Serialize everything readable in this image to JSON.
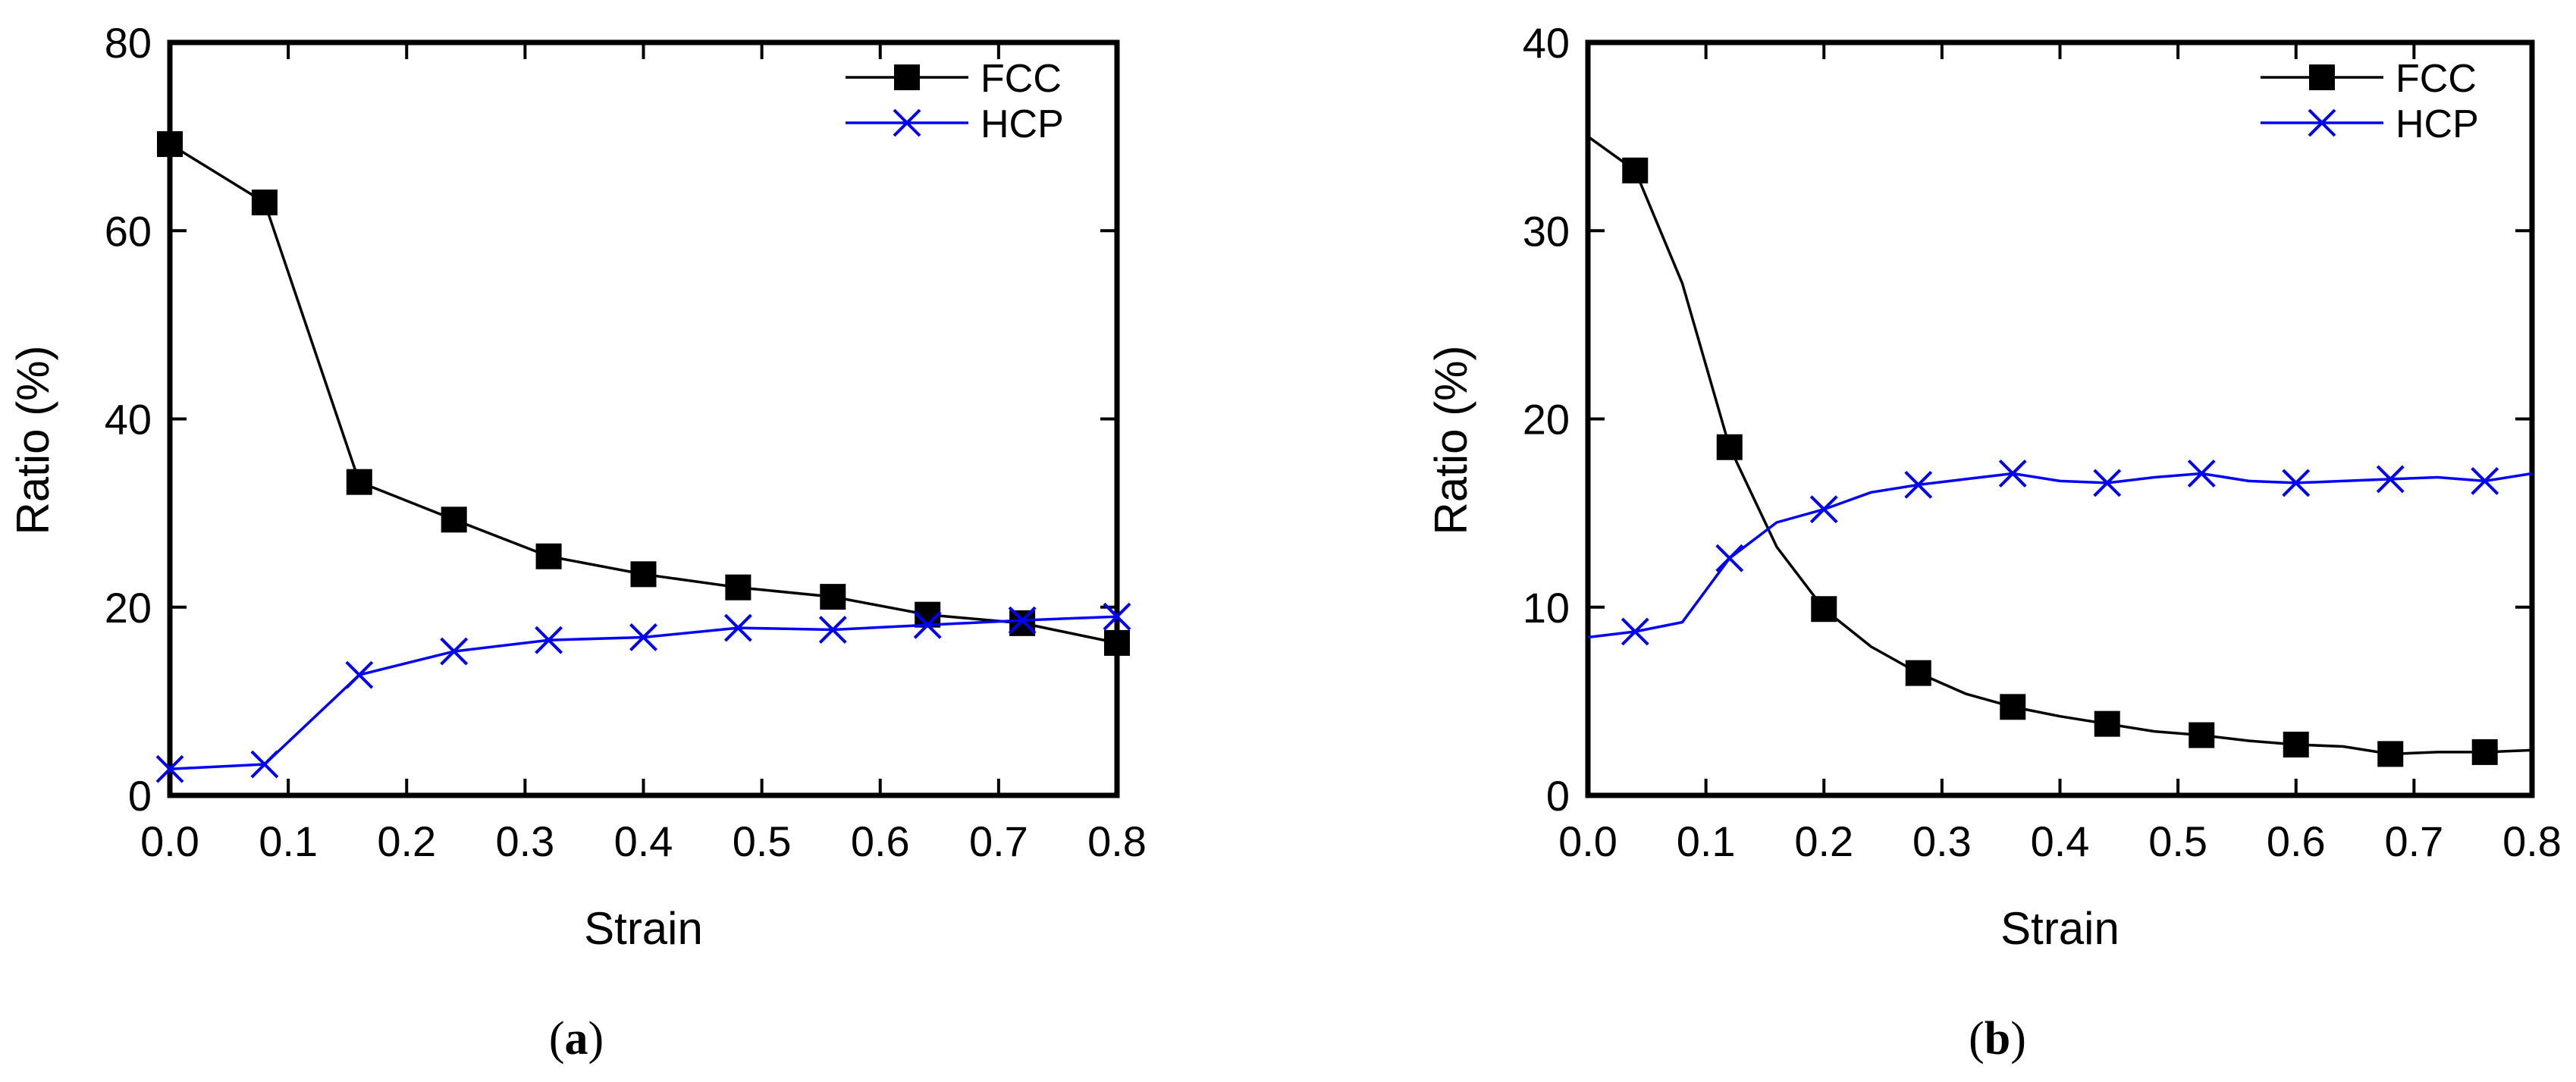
{
  "chart_data": [
    {
      "type": "line",
      "panel_label": "(a)",
      "xlabel": "Strain",
      "ylabel": "Ratio (%)",
      "xlim": [
        0.0,
        0.8
      ],
      "ylim": [
        0,
        80
      ],
      "xticks": [
        "0.0",
        "0.1",
        "0.2",
        "0.3",
        "0.4",
        "0.5",
        "0.6",
        "0.7",
        "0.8"
      ],
      "yticks": [
        "0",
        "20",
        "40",
        "60",
        "80"
      ],
      "legend_position": "top-right",
      "grid": false,
      "series": [
        {
          "name": "FCC",
          "color": "#000000",
          "marker": "square",
          "x": [
            0.0,
            0.08,
            0.16,
            0.24,
            0.32,
            0.4,
            0.48,
            0.56,
            0.64,
            0.72,
            0.8
          ],
          "y": [
            69.2,
            63.0,
            33.3,
            29.3,
            25.4,
            23.5,
            22.1,
            21.1,
            19.2,
            18.3,
            16.2
          ],
          "marker_x": [
            0.0,
            0.08,
            0.16,
            0.24,
            0.32,
            0.4,
            0.48,
            0.56,
            0.64,
            0.72,
            0.8
          ],
          "marker_y": [
            69.2,
            63.0,
            33.3,
            29.3,
            25.4,
            23.5,
            22.1,
            21.1,
            19.2,
            18.3,
            16.2
          ]
        },
        {
          "name": "HCP",
          "color": "#0000ff",
          "marker": "x",
          "x": [
            0.0,
            0.08,
            0.16,
            0.24,
            0.32,
            0.4,
            0.48,
            0.56,
            0.64,
            0.72,
            0.8
          ],
          "y": [
            2.8,
            3.3,
            12.8,
            15.3,
            16.5,
            16.8,
            17.8,
            17.6,
            18.1,
            18.6,
            19.0
          ],
          "marker_x": [
            0.0,
            0.08,
            0.16,
            0.24,
            0.32,
            0.4,
            0.48,
            0.56,
            0.64,
            0.72,
            0.8
          ],
          "marker_y": [
            2.8,
            3.3,
            12.8,
            15.3,
            16.5,
            16.8,
            17.8,
            17.6,
            18.1,
            18.6,
            19.0
          ]
        }
      ]
    },
    {
      "type": "line",
      "panel_label": "(b)",
      "xlabel": "Strain",
      "ylabel": "Ratio (%)",
      "xlim": [
        0.0,
        0.8
      ],
      "ylim": [
        0,
        40
      ],
      "xticks": [
        "0.0",
        "0.1",
        "0.2",
        "0.3",
        "0.4",
        "0.5",
        "0.6",
        "0.7",
        "0.8"
      ],
      "yticks": [
        "0",
        "10",
        "20",
        "30",
        "40"
      ],
      "legend_position": "top-right",
      "grid": false,
      "series": [
        {
          "name": "FCC",
          "color": "#000000",
          "marker": "square",
          "x": [
            0.0,
            0.04,
            0.08,
            0.12,
            0.16,
            0.2,
            0.24,
            0.28,
            0.32,
            0.36,
            0.4,
            0.44,
            0.48,
            0.52,
            0.56,
            0.6,
            0.64,
            0.68,
            0.72,
            0.76,
            0.8
          ],
          "y": [
            35.0,
            33.2,
            27.2,
            18.5,
            13.2,
            9.9,
            7.9,
            6.5,
            5.4,
            4.7,
            4.2,
            3.8,
            3.4,
            3.2,
            2.9,
            2.7,
            2.6,
            2.2,
            2.3,
            2.3,
            2.4
          ],
          "marker_x": [
            0.04,
            0.12,
            0.2,
            0.28,
            0.36,
            0.44,
            0.52,
            0.6,
            0.68,
            0.76
          ],
          "marker_y": [
            33.2,
            18.5,
            9.9,
            6.5,
            4.7,
            3.8,
            3.2,
            2.7,
            2.2,
            2.3
          ]
        },
        {
          "name": "HCP",
          "color": "#0000ff",
          "marker": "x",
          "x": [
            0.0,
            0.04,
            0.08,
            0.12,
            0.16,
            0.2,
            0.24,
            0.28,
            0.32,
            0.36,
            0.4,
            0.44,
            0.48,
            0.52,
            0.56,
            0.6,
            0.64,
            0.68,
            0.72,
            0.76,
            0.8
          ],
          "y": [
            8.4,
            8.7,
            9.2,
            12.6,
            14.5,
            15.2,
            16.1,
            16.5,
            16.8,
            17.1,
            16.7,
            16.6,
            16.9,
            17.1,
            16.7,
            16.6,
            16.7,
            16.8,
            16.9,
            16.7,
            17.1
          ],
          "marker_x": [
            0.04,
            0.12,
            0.2,
            0.28,
            0.36,
            0.44,
            0.52,
            0.6,
            0.68,
            0.76
          ],
          "marker_y": [
            8.7,
            12.6,
            15.2,
            16.5,
            17.1,
            16.6,
            17.1,
            16.6,
            16.8,
            16.7
          ]
        }
      ]
    }
  ]
}
